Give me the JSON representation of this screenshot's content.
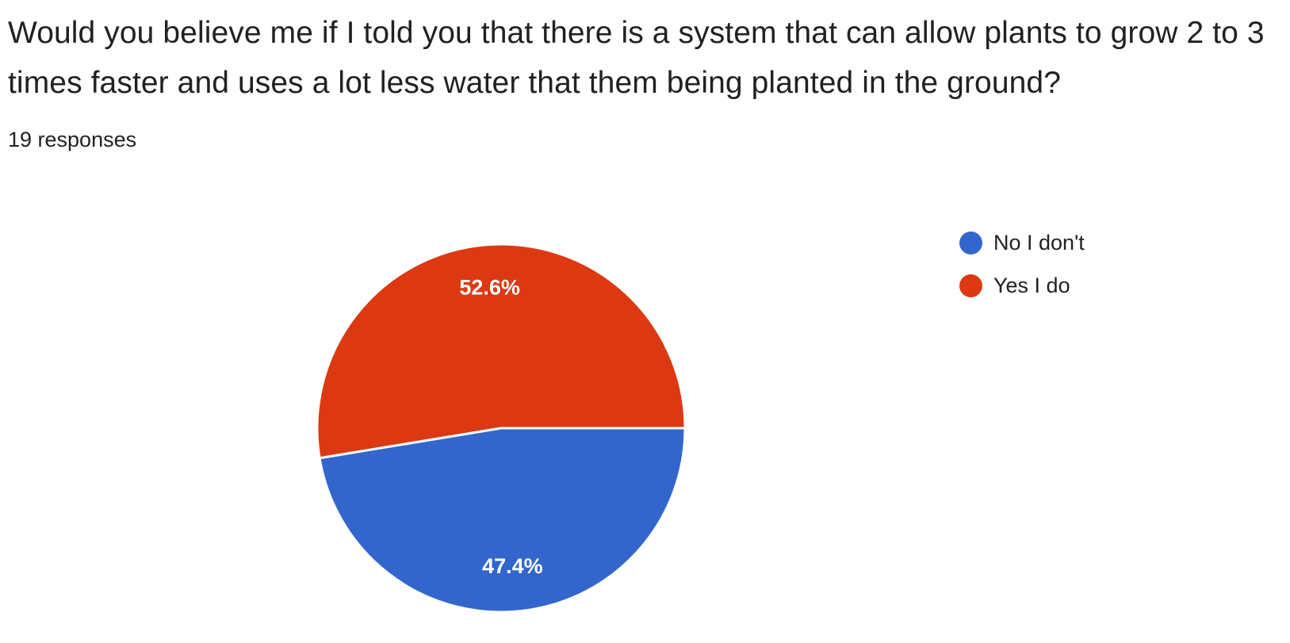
{
  "question": {
    "title": "Would you believe me if I told you that there is a system that can allow plants to grow 2 to 3 times faster and uses a lot less water that them being planted in the ground?",
    "responses": "19 responses"
  },
  "chart_data": {
    "type": "pie",
    "title": "",
    "legend_position": "right",
    "series": [
      {
        "name": "No I don't",
        "value": 47.4,
        "label": "47.4%",
        "color": "#3366cc"
      },
      {
        "name": "Yes I do",
        "value": 52.6,
        "label": "52.6%",
        "color": "#dc3912"
      }
    ]
  }
}
